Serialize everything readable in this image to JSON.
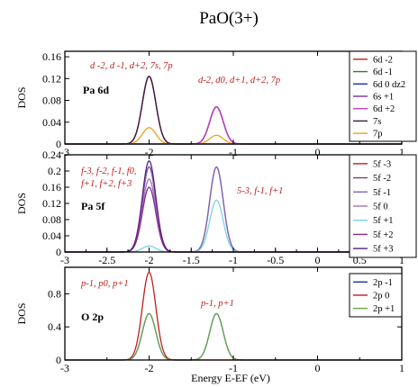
{
  "title": "PaO(3+)",
  "xlabel": "Energy E-EF (eV)",
  "chart_data": [
    {
      "type": "line",
      "panel_label": "Pa 6d",
      "ylabel": "DOS",
      "xlim": [
        -3,
        1
      ],
      "ylim": [
        0,
        0.17
      ],
      "xticks": [
        -3,
        -2,
        -1,
        0,
        1
      ],
      "xtick_labels": [
        "-3",
        "-2",
        "-1",
        "0",
        "1"
      ],
      "yticks": [
        0,
        0.04,
        0.08,
        0.12,
        0.16
      ],
      "ytick_labels": [
        "0",
        "0.04",
        "0.08",
        "0.12",
        "0.16"
      ],
      "legend_position": "top-right",
      "annotations": [
        {
          "text": "d -2, d -1, d+2, 7s, 7p",
          "near": "upper-left"
        },
        {
          "text": "d-2, d0, d+1, d+2, 7p",
          "near": "upper-middle"
        }
      ],
      "series": [
        {
          "name": "6d -2",
          "color": "#c0201a",
          "peaks": [
            {
              "x": -2.0,
              "y": 0.124
            },
            {
              "x": -1.2,
              "y": 0.068
            }
          ]
        },
        {
          "name": "6d -1",
          "color": "#2e7d32",
          "peaks": [
            {
              "x": -2.0,
              "y": 0.124
            }
          ]
        },
        {
          "name": "6d 0 dz2",
          "color": "#1f2fa8",
          "peaks": [
            {
              "x": -1.2,
              "y": 0.068
            }
          ]
        },
        {
          "name": "6s +1",
          "color": "#7b2fa0",
          "peaks": [
            {
              "x": -1.2,
              "y": 0.068
            }
          ]
        },
        {
          "name": "6d +2",
          "color": "#c040c0",
          "peaks": [
            {
              "x": -2.0,
              "y": 0.124
            },
            {
              "x": -1.2,
              "y": 0.068
            }
          ]
        },
        {
          "name": "7s",
          "color": "#3a1b3a",
          "peaks": [
            {
              "x": -2.0,
              "y": 0.124
            }
          ]
        },
        {
          "name": "7p",
          "color": "#f0a020",
          "peaks": [
            {
              "x": -2.0,
              "y": 0.03
            },
            {
              "x": -1.2,
              "y": 0.016
            }
          ]
        }
      ],
      "sigma": 0.08
    },
    {
      "type": "line",
      "panel_label": "Pa 5f",
      "ylabel": "DOS",
      "xlim": [
        -3,
        1
      ],
      "ylim": [
        0,
        0.24
      ],
      "xticks": [
        -3,
        -2.5,
        -2,
        -1.5,
        -1,
        -0.5,
        0,
        0.5,
        1
      ],
      "xtick_labels": [
        "-3",
        "-2.5",
        "-2",
        "-1.5",
        "-1",
        "-0.5",
        "0",
        "0.5",
        "1"
      ],
      "yticks": [
        0,
        0.04,
        0.08,
        0.12,
        0.16,
        0.2,
        0.24
      ],
      "ytick_labels": [
        "0",
        "0.04",
        "0.08",
        "0.12",
        "0.16",
        "0.2",
        "0.24"
      ],
      "legend_position": "top-right",
      "annotations": [
        {
          "text": "f-3, f-2, f-1, f0,",
          "near": "upper-left"
        },
        {
          "text": "f+1, f+2, f+3",
          "near": "upper-left"
        },
        {
          "text": "5-3, f-1, f+1",
          "near": "middle"
        }
      ],
      "series": [
        {
          "name": "5f -3",
          "color": "#c0201a",
          "peaks": [
            {
              "x": -2.0,
              "y": 0.21
            },
            {
              "x": -1.2,
              "y": 0.21
            }
          ]
        },
        {
          "name": "5f -2",
          "color": "#8a3a6a",
          "peaks": [
            {
              "x": -2.0,
              "y": 0.21
            }
          ]
        },
        {
          "name": "5f -1",
          "color": "#7b68c0",
          "peaks": [
            {
              "x": -2.0,
              "y": 0.21
            },
            {
              "x": -1.2,
              "y": 0.21
            }
          ]
        },
        {
          "name": "5f 0",
          "color": "#a070c0",
          "peaks": [
            {
              "x": -2.0,
              "y": 0.18
            }
          ]
        },
        {
          "name": "5f +1",
          "color": "#7ad0e8",
          "peaks": [
            {
              "x": -2.0,
              "y": 0.015
            },
            {
              "x": -1.2,
              "y": 0.128
            }
          ]
        },
        {
          "name": "5f +2",
          "color": "#8a2a8a",
          "peaks": [
            {
              "x": -2.0,
              "y": 0.16
            }
          ]
        },
        {
          "name": "5f +3",
          "color": "#5a2080",
          "peaks": [
            {
              "x": -2.0,
              "y": 0.225
            }
          ]
        }
      ],
      "sigma": 0.08
    },
    {
      "type": "line",
      "panel_label": "O 2p",
      "ylabel": "DOS",
      "xlim": [
        -3,
        1
      ],
      "ylim": [
        0,
        1.12
      ],
      "xticks": [
        -3,
        -2,
        -1,
        0,
        1
      ],
      "xtick_labels": [
        "-3",
        "-2",
        "-1",
        "0",
        "1"
      ],
      "yticks": [
        0,
        0.4,
        0.8
      ],
      "ytick_labels": [
        "0",
        "0.4",
        "0.8"
      ],
      "legend_position": "top-right",
      "annotations": [
        {
          "text": "p-1, p0, p+1",
          "near": "upper-left"
        },
        {
          "text": "p-1, p+1",
          "near": "middle"
        }
      ],
      "series": [
        {
          "name": "2p -1",
          "color": "#1f2fa8",
          "peaks": [
            {
              "x": -2.0,
              "y": 0.56
            },
            {
              "x": -1.2,
              "y": 0.56
            }
          ]
        },
        {
          "name": "2p 0",
          "color": "#c0201a",
          "peaks": [
            {
              "x": -2.0,
              "y": 1.06
            }
          ]
        },
        {
          "name": "2p +1",
          "color": "#6aa84f",
          "peaks": [
            {
              "x": -2.0,
              "y": 0.56
            },
            {
              "x": -1.2,
              "y": 0.56
            }
          ]
        }
      ],
      "sigma": 0.08
    }
  ]
}
